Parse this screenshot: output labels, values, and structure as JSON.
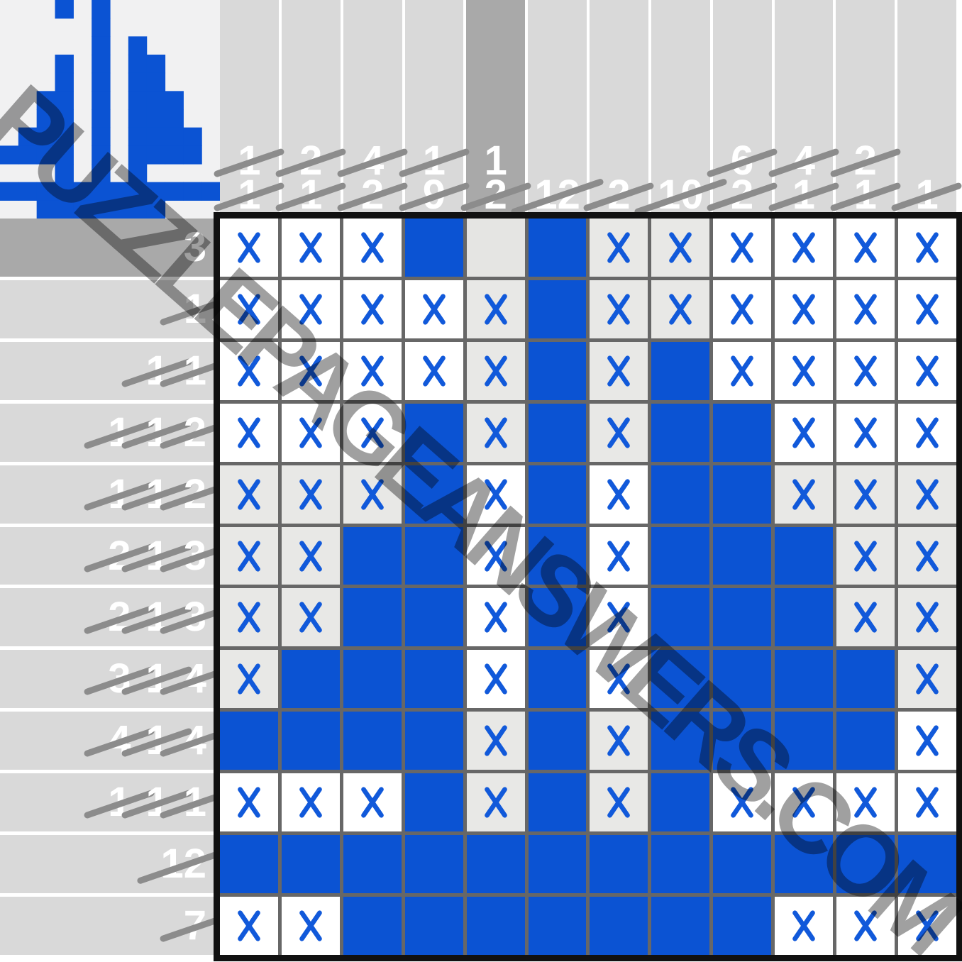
{
  "watermark": {
    "text": "PUZZLEPAGEANSWERS.COM"
  },
  "colors": {
    "fill": "#0b53d3",
    "x_mark": "#1159da",
    "cell_shaded": "#e8e8e6",
    "cell_selected": "#e5e5e3",
    "clue_bg": "#d9d9d9",
    "clue_selected_bg": "#a9a9a9",
    "clue_text": "#ffffff",
    "strike": "#8c8c8c",
    "grid_line": "#676767",
    "frame": "#111111",
    "preview_bg": "#f1f1f2",
    "watermark": "#a0a0a0"
  },
  "legend": {
    "B": "filled-blue",
    "X": "cross-on-white",
    "x": "cross-on-shaded",
    ".": "empty-shaded-selected"
  },
  "grid": [
    "XXXB.BxxXXXX",
    "XXXXxBxxXXXX",
    "XXXXxBxBXXXX",
    "XXXBxBxBBXXX",
    "xxxBXBXBBxxx",
    "xxBBXBXBBBxx",
    "xxBBXBXBBBxx",
    "xBBBXBXBBBBx",
    "BBBBxBxBBBBX",
    "XXXBxBxBXXXX",
    "BBBBBBBBBBBB",
    "XXBBBBBBBXXX"
  ],
  "column_clues": [
    {
      "numbers": [
        {
          "value": "1",
          "struck": true
        },
        {
          "value": "1",
          "struck": true
        }
      ],
      "selected": false
    },
    {
      "numbers": [
        {
          "value": "2",
          "struck": true
        },
        {
          "value": "1",
          "struck": true
        }
      ],
      "selected": false
    },
    {
      "numbers": [
        {
          "value": "4",
          "struck": true
        },
        {
          "value": "2",
          "struck": true
        }
      ],
      "selected": false
    },
    {
      "numbers": [
        {
          "value": "1",
          "struck": true
        },
        {
          "value": "9",
          "struck": true
        }
      ],
      "selected": false
    },
    {
      "numbers": [
        {
          "value": "1",
          "struck": false
        },
        {
          "value": "2",
          "struck": true
        }
      ],
      "selected": true
    },
    {
      "numbers": [
        {
          "value": "12",
          "struck": true
        }
      ],
      "selected": false
    },
    {
      "numbers": [
        {
          "value": "2",
          "struck": true
        }
      ],
      "selected": false
    },
    {
      "numbers": [
        {
          "value": "10",
          "struck": true
        }
      ],
      "selected": false
    },
    {
      "numbers": [
        {
          "value": "6",
          "struck": true
        },
        {
          "value": "2",
          "struck": true
        }
      ],
      "selected": false
    },
    {
      "numbers": [
        {
          "value": "4",
          "struck": true
        },
        {
          "value": "1",
          "struck": true
        }
      ],
      "selected": false
    },
    {
      "numbers": [
        {
          "value": "2",
          "struck": true
        },
        {
          "value": "1",
          "struck": true
        }
      ],
      "selected": false
    },
    {
      "numbers": [
        {
          "value": "1",
          "struck": true
        }
      ],
      "selected": false
    }
  ],
  "row_clues": [
    {
      "numbers": [
        {
          "value": "3",
          "struck": false
        }
      ],
      "selected": true
    },
    {
      "numbers": [
        {
          "value": "1",
          "struck": true
        }
      ],
      "selected": false
    },
    {
      "numbers": [
        {
          "value": "1",
          "struck": true
        },
        {
          "value": "1",
          "struck": true
        }
      ],
      "selected": false
    },
    {
      "numbers": [
        {
          "value": "1",
          "struck": true
        },
        {
          "value": "1",
          "struck": true
        },
        {
          "value": "2",
          "struck": true
        }
      ],
      "selected": false
    },
    {
      "numbers": [
        {
          "value": "1",
          "struck": true
        },
        {
          "value": "1",
          "struck": true
        },
        {
          "value": "2",
          "struck": true
        }
      ],
      "selected": false
    },
    {
      "numbers": [
        {
          "value": "2",
          "struck": true
        },
        {
          "value": "1",
          "struck": true
        },
        {
          "value": "3",
          "struck": true
        }
      ],
      "selected": false
    },
    {
      "numbers": [
        {
          "value": "2",
          "struck": true
        },
        {
          "value": "1",
          "struck": true
        },
        {
          "value": "3",
          "struck": true
        }
      ],
      "selected": false
    },
    {
      "numbers": [
        {
          "value": "3",
          "struck": true
        },
        {
          "value": "1",
          "struck": true
        },
        {
          "value": "4",
          "struck": true
        }
      ],
      "selected": false
    },
    {
      "numbers": [
        {
          "value": "4",
          "struck": true
        },
        {
          "value": "1",
          "struck": true
        },
        {
          "value": "4",
          "struck": true
        }
      ],
      "selected": false
    },
    {
      "numbers": [
        {
          "value": "1",
          "struck": true
        },
        {
          "value": "1",
          "struck": true
        },
        {
          "value": "1",
          "struck": true
        }
      ],
      "selected": false
    },
    {
      "numbers": [
        {
          "value": "12",
          "struck": true
        }
      ],
      "selected": false
    },
    {
      "numbers": [
        {
          "value": "7",
          "struck": true
        }
      ],
      "selected": false
    }
  ]
}
